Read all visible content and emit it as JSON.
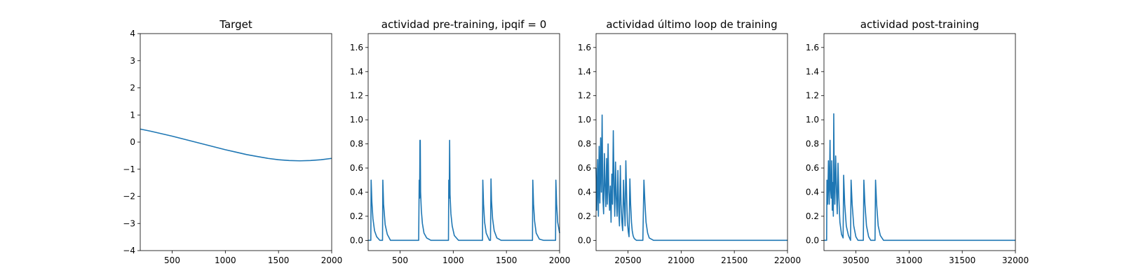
{
  "figure": {
    "background": "#ffffff",
    "line_color": "#1f77b4"
  },
  "chart_data": [
    {
      "type": "line",
      "title": "Target",
      "xlabel": "",
      "ylabel": "",
      "xlim": [
        200,
        2000
      ],
      "ylim": [
        -4,
        4
      ],
      "xticks": [
        500,
        1000,
        1500,
        2000
      ],
      "yticks": [
        -4,
        -3,
        -2,
        -1,
        0,
        1,
        2,
        3,
        4
      ],
      "grid": false,
      "series": [
        {
          "x": [
            200,
            300,
            400,
            500,
            600,
            700,
            800,
            900,
            1000,
            1100,
            1200,
            1300,
            1400,
            1500,
            1600,
            1700,
            1800,
            1900,
            2000
          ],
          "y": [
            0.48,
            0.4,
            0.31,
            0.22,
            0.12,
            0.02,
            -0.08,
            -0.18,
            -0.28,
            -0.37,
            -0.46,
            -0.53,
            -0.6,
            -0.65,
            -0.68,
            -0.69,
            -0.68,
            -0.65,
            -0.6
          ]
        }
      ]
    },
    {
      "type": "line",
      "title": "actividad pre-training, ipqif = 0",
      "xlabel": "",
      "ylabel": "",
      "xlim": [
        200,
        2000
      ],
      "ylim": [
        -0.085,
        1.715
      ],
      "xticks": [
        500,
        1000,
        1500,
        2000
      ],
      "yticks": [
        0.0,
        0.2,
        0.4,
        0.6,
        0.8,
        1.0,
        1.2,
        1.4,
        1.6
      ],
      "grid": false,
      "series": [
        {
          "x": [
            200,
            225,
            228,
            235,
            245,
            260,
            280,
            310,
            335,
            338,
            345,
            360,
            380,
            410,
            675,
            680,
            684,
            687,
            690,
            693,
            700,
            710,
            725,
            750,
            790,
            955,
            958,
            962,
            966,
            970,
            978,
            990,
            1010,
            1050,
            1275,
            1278,
            1285,
            1295,
            1310,
            1340,
            1350,
            1355,
            1360,
            1370,
            1385,
            1410,
            1450,
            1745,
            1748,
            1755,
            1765,
            1780,
            1810,
            1850,
            1962,
            1965,
            1972,
            1982,
            2000
          ],
          "y": [
            0.0,
            0.0,
            0.5,
            0.32,
            0.18,
            0.08,
            0.03,
            0.0,
            0.0,
            0.5,
            0.3,
            0.13,
            0.05,
            0.0,
            0.0,
            0.5,
            0.35,
            0.83,
            0.83,
            0.4,
            0.25,
            0.14,
            0.06,
            0.02,
            0.0,
            0.0,
            0.5,
            0.35,
            0.83,
            0.38,
            0.22,
            0.12,
            0.04,
            0.0,
            0.0,
            0.5,
            0.3,
            0.15,
            0.06,
            0.0,
            0.0,
            0.51,
            0.33,
            0.18,
            0.08,
            0.02,
            0.0,
            0.0,
            0.5,
            0.3,
            0.16,
            0.06,
            0.01,
            0.0,
            0.0,
            0.5,
            0.3,
            0.15,
            0.06
          ]
        }
      ]
    },
    {
      "type": "line",
      "title": "actividad último loop de training",
      "xlabel": "",
      "ylabel": "",
      "xlim": [
        20200,
        22000
      ],
      "ylim": [
        -0.085,
        1.715
      ],
      "xticks": [
        20500,
        21000,
        21500,
        22000
      ],
      "yticks": [
        0.0,
        0.2,
        0.4,
        0.6,
        0.8,
        1.0,
        1.2,
        1.4,
        1.6
      ],
      "grid": false,
      "series": [
        {
          "x": [
            20200,
            20207,
            20215,
            20222,
            20229,
            20236,
            20243,
            20250,
            20257,
            20264,
            20271,
            20278,
            20285,
            20292,
            20299,
            20306,
            20313,
            20320,
            20327,
            20334,
            20341,
            20348,
            20355,
            20362,
            20369,
            20376,
            20383,
            20390,
            20398,
            20405,
            20413,
            20420,
            20428,
            20435,
            20443,
            20450,
            20458,
            20465,
            20473,
            20480,
            20488,
            20495,
            20503,
            20510,
            20518,
            20525,
            20533,
            20540,
            20548,
            20556,
            20565,
            20580,
            20600,
            20640,
            20650,
            20660,
            20670,
            20685,
            20700,
            20740,
            20800,
            22000
          ],
          "y": [
            0.6,
            0.25,
            0.67,
            0.2,
            0.78,
            0.31,
            0.85,
            0.4,
            1.04,
            0.35,
            0.22,
            0.72,
            0.45,
            0.28,
            0.68,
            0.3,
            0.8,
            0.4,
            0.25,
            0.45,
            0.15,
            0.55,
            0.3,
            0.91,
            0.45,
            0.2,
            0.65,
            0.35,
            0.2,
            0.58,
            0.25,
            0.12,
            0.62,
            0.3,
            0.15,
            0.08,
            0.5,
            0.3,
            0.12,
            0.66,
            0.35,
            0.15,
            0.07,
            0.03,
            0.51,
            0.3,
            0.15,
            0.08,
            0.04,
            0.02,
            0.01,
            0.0,
            0.0,
            0.0,
            0.5,
            0.3,
            0.15,
            0.06,
            0.02,
            0.0,
            0.0,
            0.0
          ]
        }
      ]
    },
    {
      "type": "line",
      "title": "actividad post-training",
      "xlabel": "",
      "ylabel": "",
      "xlim": [
        30200,
        32000
      ],
      "ylim": [
        -0.085,
        1.715
      ],
      "xticks": [
        30500,
        31000,
        31500,
        32000
      ],
      "yticks": [
        0.0,
        0.2,
        0.4,
        0.6,
        0.8,
        1.0,
        1.2,
        1.4,
        1.6
      ],
      "grid": false,
      "series": [
        {
          "x": [
            30200,
            30225,
            30228,
            30235,
            30242,
            30250,
            30257,
            30262,
            30268,
            30273,
            30278,
            30283,
            30288,
            30292,
            30297,
            30302,
            30310,
            30318,
            30325,
            30332,
            30340,
            30350,
            30365,
            30380,
            30385,
            30395,
            30410,
            30430,
            30450,
            30455,
            30465,
            30480,
            30500,
            30520,
            30570,
            30575,
            30585,
            30600,
            30620,
            30640,
            30680,
            30685,
            30695,
            30710,
            30730,
            30760,
            30800,
            32000
          ],
          "y": [
            0.0,
            0.0,
            0.5,
            0.3,
            0.66,
            0.3,
            0.83,
            0.42,
            0.35,
            0.66,
            0.25,
            0.48,
            0.2,
            1.05,
            0.5,
            0.3,
            0.7,
            0.4,
            0.22,
            0.64,
            0.35,
            0.15,
            0.05,
            0.02,
            0.54,
            0.3,
            0.12,
            0.04,
            0.0,
            0.5,
            0.3,
            0.12,
            0.03,
            0.0,
            0.0,
            0.5,
            0.3,
            0.12,
            0.03,
            0.0,
            0.0,
            0.5,
            0.3,
            0.12,
            0.04,
            0.0,
            0.0,
            0.0
          ]
        }
      ]
    }
  ]
}
